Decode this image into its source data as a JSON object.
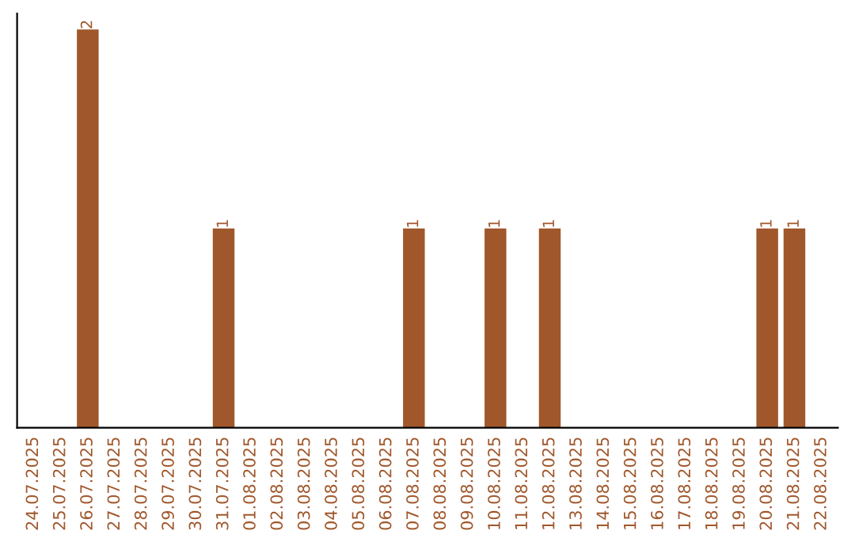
{
  "chart_data": {
    "type": "bar",
    "categories": [
      "24.07.2025",
      "25.07.2025",
      "26.07.2025",
      "27.07.2025",
      "28.07.2025",
      "29.07.2025",
      "30.07.2025",
      "31.07.2025",
      "01.08.2025",
      "02.08.2025",
      "03.08.2025",
      "04.08.2025",
      "05.08.2025",
      "06.08.2025",
      "07.08.2025",
      "08.08.2025",
      "09.08.2025",
      "10.08.2025",
      "11.08.2025",
      "12.08.2025",
      "13.08.2025",
      "14.08.2025",
      "15.08.2025",
      "16.08.2025",
      "17.08.2025",
      "18.08.2025",
      "19.08.2025",
      "20.08.2025",
      "21.08.2025",
      "22.08.2025"
    ],
    "values": [
      0,
      0,
      2,
      0,
      0,
      0,
      0,
      1,
      0,
      0,
      0,
      0,
      0,
      0,
      1,
      0,
      0,
      1,
      0,
      1,
      0,
      0,
      0,
      0,
      0,
      0,
      0,
      1,
      1,
      0
    ],
    "value_labels": [
      null,
      null,
      "2",
      null,
      null,
      null,
      null,
      "1",
      null,
      null,
      null,
      null,
      null,
      null,
      "1",
      null,
      null,
      "1",
      null,
      "1",
      null,
      null,
      null,
      null,
      null,
      null,
      null,
      "1",
      "1",
      null
    ],
    "color": "#a0572b",
    "tick_labels": "x",
    "grid": false
  }
}
